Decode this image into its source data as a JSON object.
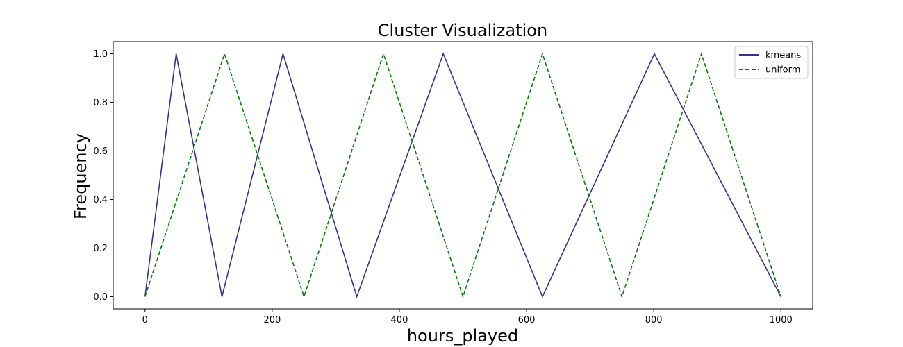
{
  "chart_data": {
    "type": "line",
    "title": "Cluster Visualization",
    "xlabel": "hours_played",
    "ylabel": "Frequency",
    "xlim": [
      -50,
      1050
    ],
    "ylim": [
      -0.05,
      1.05
    ],
    "xticks": [
      0,
      200,
      400,
      600,
      800,
      1000
    ],
    "xtick_labels": [
      "0",
      "200",
      "400",
      "600",
      "800",
      "1000"
    ],
    "yticks": [
      0.0,
      0.2,
      0.4,
      0.6,
      0.8,
      1.0
    ],
    "ytick_labels": [
      "0.0",
      "0.2",
      "0.4",
      "0.6",
      "0.8",
      "1.0"
    ],
    "grid": false,
    "legend_position": "top-right",
    "series": [
      {
        "name": "kmeans",
        "color": "#3a2f96",
        "style": "solid",
        "x": [
          0,
          49,
          121,
          217,
          333,
          469,
          625,
          801,
          1000
        ],
        "y": [
          0,
          1,
          0,
          1,
          0,
          1,
          0,
          1,
          0
        ]
      },
      {
        "name": "uniform",
        "color": "#008000",
        "style": "dashed",
        "x": [
          0,
          125,
          250,
          375,
          500,
          625,
          750,
          875,
          1000
        ],
        "y": [
          0,
          1,
          0,
          1,
          0,
          1,
          0,
          1,
          0
        ]
      }
    ]
  }
}
